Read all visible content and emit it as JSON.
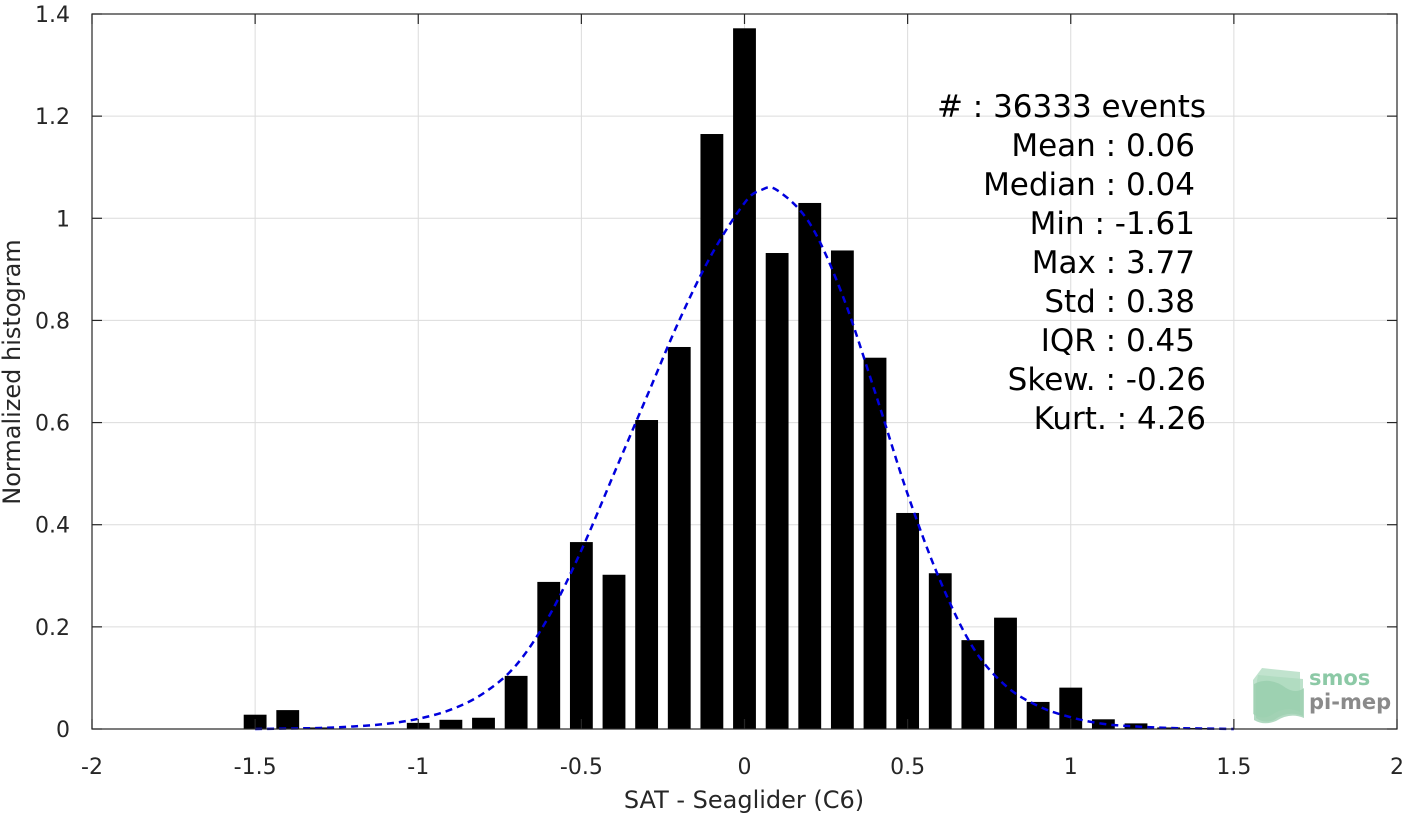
{
  "chart_data": {
    "type": "bar",
    "xlabel": "SAT - Seaglider (C6)",
    "ylabel": "Normalized histogram",
    "xlim": [
      -2,
      2
    ],
    "ylim": [
      0,
      1.4
    ],
    "xticks": [
      -2,
      -1.5,
      -1,
      -0.5,
      0,
      0.5,
      1,
      1.5,
      2
    ],
    "xtick_labels": [
      "-2",
      "-1.5",
      "-1",
      "-0.5",
      "0",
      "0.5",
      "1",
      "1.5",
      "2"
    ],
    "yticks": [
      0,
      0.2,
      0.4,
      0.6,
      0.8,
      1,
      1.2,
      1.4
    ],
    "ytick_labels": [
      "0",
      "0.2",
      "0.4",
      "0.6",
      "0.8",
      "1",
      "1.2",
      "1.4"
    ],
    "grid": true,
    "bar_width": 0.07,
    "bar_color": "#000000",
    "bars": {
      "x": [
        -1.5,
        -1.4,
        -1.3,
        -1.2,
        -1.1,
        -1.0,
        -0.9,
        -0.8,
        -0.7,
        -0.6,
        -0.5,
        -0.4,
        -0.3,
        -0.2,
        -0.1,
        0.0,
        0.1,
        0.2,
        0.3,
        0.4,
        0.5,
        0.6,
        0.7,
        0.8,
        0.9,
        1.0,
        1.1,
        1.2,
        1.3,
        1.4,
        1.5
      ],
      "values": [
        0.028,
        0.037,
        0.003,
        0.0,
        0.0,
        0.012,
        0.018,
        0.022,
        0.104,
        0.288,
        0.366,
        0.302,
        0.605,
        0.748,
        1.165,
        1.372,
        0.932,
        1.03,
        0.937,
        0.727,
        0.423,
        0.305,
        0.174,
        0.218,
        0.053,
        0.081,
        0.019,
        0.011,
        0.003,
        0.002,
        0.001
      ]
    },
    "fit_curve": {
      "style": "dashed",
      "color": "#0000dd",
      "x": [
        -1.5,
        -1.4,
        -1.3,
        -1.2,
        -1.1,
        -1.0,
        -0.9,
        -0.8,
        -0.7,
        -0.6,
        -0.5,
        -0.4,
        -0.3,
        -0.2,
        -0.1,
        0.0,
        0.05,
        0.1,
        0.2,
        0.3,
        0.4,
        0.5,
        0.6,
        0.7,
        0.8,
        0.9,
        1.0,
        1.1,
        1.2,
        1.3,
        1.4,
        1.5
      ],
      "values": [
        0.0,
        0.001,
        0.002,
        0.005,
        0.01,
        0.02,
        0.038,
        0.07,
        0.125,
        0.22,
        0.35,
        0.5,
        0.65,
        0.8,
        0.93,
        1.03,
        1.055,
        1.055,
        0.99,
        0.85,
        0.66,
        0.46,
        0.29,
        0.16,
        0.085,
        0.045,
        0.023,
        0.01,
        0.005,
        0.002,
        0.001,
        0.0
      ]
    },
    "stats_lines": [
      "#  : 36333 events",
      "Mean : 0.06",
      "Median : 0.04",
      "Min : -1.61",
      "Max : 3.77",
      "Std : 0.38",
      "IQR : 0.45",
      "Skew. : -0.26",
      "Kurt. : 4.26"
    ]
  },
  "logo": {
    "line1": "smos",
    "line2": "pi-mep",
    "color": "#8cc9a6"
  }
}
